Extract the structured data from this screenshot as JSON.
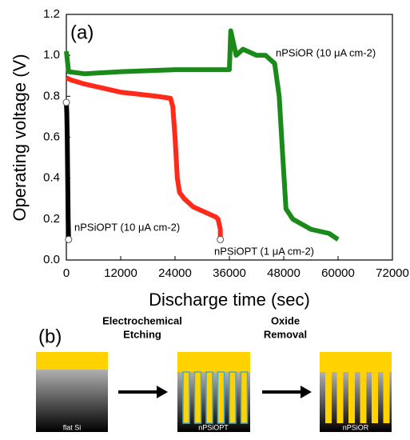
{
  "chart_data": {
    "type": "line",
    "panel_label": "(a)",
    "xlabel": "Discharge time (sec)",
    "ylabel": "Operating voltage (V)",
    "xlim": [
      0,
      72000
    ],
    "xticks": [
      0,
      12000,
      24000,
      36000,
      48000,
      60000,
      72000
    ],
    "ylim": [
      0,
      1.2
    ],
    "yticks": [
      {
        "value": 0,
        "label": "0.0"
      },
      0.2,
      0.4,
      0.6,
      0.8,
      {
        "value": 1,
        "label": "1.0"
      },
      1.2
    ],
    "series": [
      {
        "name": "nPSiOPT (10 μA cm-2)",
        "color": "#000000",
        "x": [
          0,
          100,
          200,
          300,
          400,
          500
        ],
        "values": [
          0.77,
          0.72,
          0.6,
          0.4,
          0.2,
          0.1
        ]
      },
      {
        "name": "nPSiOPT (1 μA cm-2)",
        "color": "#ff2a1a",
        "x": [
          0,
          1000,
          4000,
          8000,
          12000,
          16000,
          20000,
          23000,
          23500,
          24000,
          24500,
          25000,
          26000,
          28000,
          30000,
          32000,
          33000,
          33500,
          34000,
          34000
        ],
        "values": [
          0.89,
          0.88,
          0.86,
          0.84,
          0.82,
          0.81,
          0.8,
          0.79,
          0.75,
          0.6,
          0.4,
          0.33,
          0.3,
          0.26,
          0.24,
          0.22,
          0.21,
          0.2,
          0.15,
          0.1
        ]
      },
      {
        "name": "nPSiOR (10 μA cm-2)",
        "color": "#1a8a1a",
        "x": [
          0,
          500,
          4000,
          12000,
          24000,
          36000,
          36300,
          37500,
          39000,
          42000,
          44000,
          46000,
          47000,
          47800,
          48500,
          50000,
          54000,
          58000,
          60000
        ],
        "values": [
          1.02,
          0.92,
          0.91,
          0.92,
          0.93,
          0.93,
          1.12,
          1.0,
          1.03,
          1.0,
          1.0,
          0.96,
          0.8,
          0.5,
          0.25,
          0.2,
          0.15,
          0.13,
          0.1
        ]
      }
    ]
  },
  "diagram": {
    "panel_label": "(b)",
    "steps": [
      [
        "Electrochemical",
        "Etching"
      ],
      [
        "Oxide",
        "Removal"
      ]
    ],
    "panels": [
      "flat Si",
      "nPSiOPT",
      "nPSiOR"
    ]
  }
}
